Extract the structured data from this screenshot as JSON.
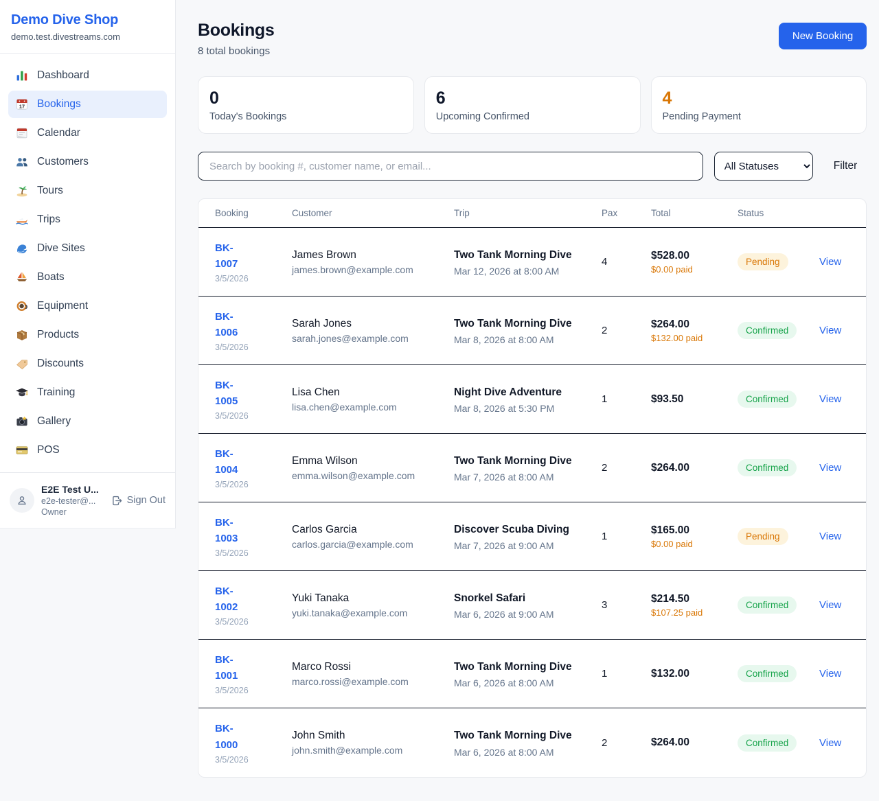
{
  "sidebar": {
    "brand": {
      "name": "Demo Dive Shop",
      "domain": "demo.test.divestreams.com"
    },
    "items": [
      {
        "icon_name": "dashboard-icon",
        "label": "Dashboard",
        "active": false
      },
      {
        "icon_name": "bookings-icon",
        "label": "Bookings",
        "active": true
      },
      {
        "icon_name": "calendar-icon",
        "label": "Calendar",
        "active": false
      },
      {
        "icon_name": "customers-icon",
        "label": "Customers",
        "active": false
      },
      {
        "icon_name": "tours-icon",
        "label": "Tours",
        "active": false
      },
      {
        "icon_name": "trips-icon",
        "label": "Trips",
        "active": false
      },
      {
        "icon_name": "dive-sites-icon",
        "label": "Dive Sites",
        "active": false
      },
      {
        "icon_name": "boats-icon",
        "label": "Boats",
        "active": false
      },
      {
        "icon_name": "equipment-icon",
        "label": "Equipment",
        "active": false
      },
      {
        "icon_name": "products-icon",
        "label": "Products",
        "active": false
      },
      {
        "icon_name": "discounts-icon",
        "label": "Discounts",
        "active": false
      },
      {
        "icon_name": "training-icon",
        "label": "Training",
        "active": false
      },
      {
        "icon_name": "gallery-icon",
        "label": "Gallery",
        "active": false
      },
      {
        "icon_name": "pos-icon",
        "label": "POS",
        "active": false
      }
    ],
    "user": {
      "name": "E2E Test U...",
      "email": "e2e-tester@...",
      "role": "Owner",
      "signout_label": "Sign Out"
    }
  },
  "header": {
    "title": "Bookings",
    "subtitle": "8 total bookings",
    "new_booking_label": "New Booking"
  },
  "stats": [
    {
      "value": "0",
      "label": "Today's Bookings",
      "value_color": "#0f172a"
    },
    {
      "value": "6",
      "label": "Upcoming Confirmed",
      "value_color": "#0f172a"
    },
    {
      "value": "4",
      "label": "Pending Payment",
      "value_color": "#d97706"
    }
  ],
  "filters": {
    "search_placeholder": "Search by booking #, customer name, or email...",
    "status_select_value": "All Statuses",
    "filter_label": "Filter"
  },
  "table": {
    "columns": [
      "Booking",
      "Customer",
      "Trip",
      "Pax",
      "Total",
      "Status"
    ],
    "rows": [
      {
        "id": "BK-1007",
        "date": "3/5/2026",
        "customer": "James Brown",
        "email": "james.brown@example.com",
        "trip": "Two Tank Morning Dive",
        "trip_time": "Mar 12, 2026 at 8:00 AM",
        "pax": "4",
        "total": "$528.00",
        "paid": "$0.00 paid",
        "status": "Pending",
        "action": "View"
      },
      {
        "id": "BK-1006",
        "date": "3/5/2026",
        "customer": "Sarah Jones",
        "email": "sarah.jones@example.com",
        "trip": "Two Tank Morning Dive",
        "trip_time": "Mar 8, 2026 at 8:00 AM",
        "pax": "2",
        "total": "$264.00",
        "paid": "$132.00 paid",
        "status": "Confirmed",
        "action": "View"
      },
      {
        "id": "BK-1005",
        "date": "3/5/2026",
        "customer": "Lisa Chen",
        "email": "lisa.chen@example.com",
        "trip": "Night Dive Adventure",
        "trip_time": "Mar 8, 2026 at 5:30 PM",
        "pax": "1",
        "total": "$93.50",
        "paid": null,
        "status": "Confirmed",
        "action": "View"
      },
      {
        "id": "BK-1004",
        "date": "3/5/2026",
        "customer": "Emma Wilson",
        "email": "emma.wilson@example.com",
        "trip": "Two Tank Morning Dive",
        "trip_time": "Mar 7, 2026 at 8:00 AM",
        "pax": "2",
        "total": "$264.00",
        "paid": null,
        "status": "Confirmed",
        "action": "View"
      },
      {
        "id": "BK-1003",
        "date": "3/5/2026",
        "customer": "Carlos Garcia",
        "email": "carlos.garcia@example.com",
        "trip": "Discover Scuba Diving",
        "trip_time": "Mar 7, 2026 at 9:00 AM",
        "pax": "1",
        "total": "$165.00",
        "paid": "$0.00 paid",
        "status": "Pending",
        "action": "View"
      },
      {
        "id": "BK-1002",
        "date": "3/5/2026",
        "customer": "Yuki Tanaka",
        "email": "yuki.tanaka@example.com",
        "trip": "Snorkel Safari",
        "trip_time": "Mar 6, 2026 at 9:00 AM",
        "pax": "3",
        "total": "$214.50",
        "paid": "$107.25 paid",
        "status": "Confirmed",
        "action": "View"
      },
      {
        "id": "BK-1001",
        "date": "3/5/2026",
        "customer": "Marco Rossi",
        "email": "marco.rossi@example.com",
        "trip": "Two Tank Morning Dive",
        "trip_time": "Mar 6, 2026 at 8:00 AM",
        "pax": "1",
        "total": "$132.00",
        "paid": null,
        "status": "Confirmed",
        "action": "View"
      },
      {
        "id": "BK-1000",
        "date": "3/5/2026",
        "customer": "John Smith",
        "email": "john.smith@example.com",
        "trip": "Two Tank Morning Dive",
        "trip_time": "Mar 6, 2026 at 8:00 AM",
        "pax": "2",
        "total": "$264.00",
        "paid": null,
        "status": "Confirmed",
        "action": "View"
      }
    ]
  },
  "colors": {
    "accent_blue": "#2563eb",
    "pending_text": "#d97706",
    "pending_bg": "#fdf3dc",
    "confirmed_text": "#16a34a",
    "confirmed_bg": "#e7f8ee",
    "paid_amount": "#d97706",
    "row_divider": "#111827",
    "page_bg": "#f7f8fa"
  }
}
